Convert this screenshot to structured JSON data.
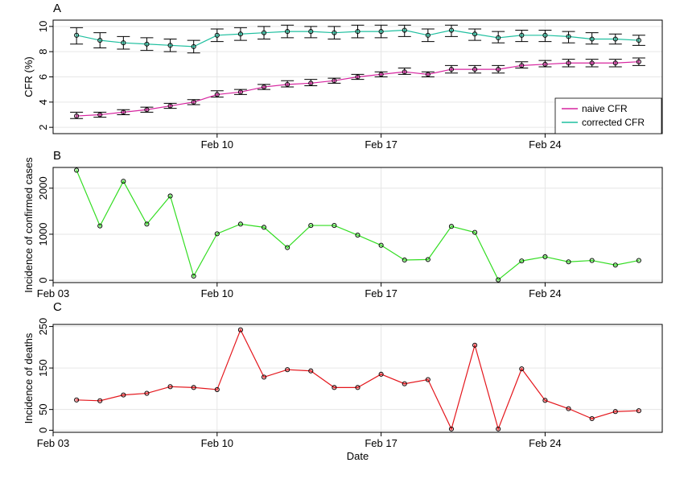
{
  "chart_data": [
    {
      "type": "line",
      "panel_label": "A",
      "ylabel": "CFR (%)",
      "xlabel": "",
      "x_tick_labels": [
        "Feb 10",
        "Feb 17",
        "Feb 24"
      ],
      "x_ticks": [
        10,
        17,
        24
      ],
      "xlim": [
        3,
        29
      ],
      "ylim": [
        1.5,
        10.5
      ],
      "y_ticks": [
        2,
        4,
        6,
        8,
        10
      ],
      "y_tick_labels": [
        "2",
        "4",
        "6",
        "8",
        "10"
      ],
      "grid": true,
      "legend_position": "bottom-right",
      "x": [
        4,
        5,
        6,
        7,
        8,
        9,
        10,
        11,
        12,
        13,
        14,
        15,
        16,
        17,
        18,
        19,
        20,
        21,
        22,
        23,
        24,
        25,
        26,
        27,
        28
      ],
      "series": [
        {
          "name": "naive CFR",
          "color": "#d6249f",
          "values": [
            2.9,
            3.0,
            3.2,
            3.4,
            3.7,
            4.0,
            4.6,
            4.8,
            5.2,
            5.4,
            5.5,
            5.7,
            6.0,
            6.2,
            6.4,
            6.2,
            6.6,
            6.6,
            6.6,
            6.9,
            7.0,
            7.1,
            7.1,
            7.1,
            7.2
          ],
          "error_low": [
            2.7,
            2.8,
            3.0,
            3.2,
            3.5,
            3.8,
            4.4,
            4.6,
            5.0,
            5.2,
            5.3,
            5.5,
            5.8,
            6.0,
            6.2,
            6.0,
            6.3,
            6.3,
            6.3,
            6.7,
            6.8,
            6.8,
            6.8,
            6.8,
            6.9
          ],
          "error_high": [
            3.2,
            3.2,
            3.4,
            3.6,
            3.9,
            4.2,
            4.9,
            5.0,
            5.4,
            5.7,
            5.8,
            5.9,
            6.2,
            6.4,
            6.7,
            6.4,
            6.9,
            6.9,
            6.9,
            7.2,
            7.3,
            7.4,
            7.4,
            7.4,
            7.5
          ]
        },
        {
          "name": "corrected CFR",
          "color": "#1fbf9f",
          "values": [
            9.3,
            8.9,
            8.7,
            8.6,
            8.5,
            8.4,
            9.3,
            9.4,
            9.5,
            9.6,
            9.6,
            9.5,
            9.6,
            9.6,
            9.7,
            9.3,
            9.7,
            9.4,
            9.1,
            9.3,
            9.3,
            9.2,
            9.0,
            9.0,
            8.9
          ],
          "error_low": [
            8.6,
            8.3,
            8.2,
            8.1,
            8.0,
            7.9,
            8.8,
            8.9,
            9.0,
            9.1,
            9.1,
            9.0,
            9.1,
            9.1,
            9.2,
            8.8,
            9.2,
            8.9,
            8.7,
            8.8,
            8.8,
            8.7,
            8.6,
            8.6,
            8.5
          ],
          "error_high": [
            9.9,
            9.5,
            9.2,
            9.1,
            9.0,
            8.9,
            9.8,
            9.9,
            10.0,
            10.1,
            10.0,
            10.0,
            10.1,
            10.1,
            10.1,
            9.8,
            10.1,
            9.8,
            9.6,
            9.7,
            9.7,
            9.6,
            9.5,
            9.4,
            9.3
          ]
        }
      ]
    },
    {
      "type": "line",
      "panel_label": "B",
      "ylabel": "Incidence of confirmed cases",
      "xlabel": "",
      "x_tick_labels": [
        "Feb 03",
        "Feb 10",
        "Feb 17",
        "Feb 24"
      ],
      "x_ticks": [
        3,
        10,
        17,
        24
      ],
      "xlim": [
        3,
        29
      ],
      "ylim": [
        -50,
        2450
      ],
      "y_ticks": [
        0,
        1000,
        2000
      ],
      "y_tick_labels": [
        "0",
        "1000",
        "2000"
      ],
      "grid": true,
      "x": [
        4,
        5,
        6,
        7,
        8,
        9,
        10,
        11,
        12,
        13,
        14,
        15,
        16,
        17,
        18,
        19,
        20,
        21,
        22,
        23,
        24,
        25,
        26,
        27,
        28
      ],
      "series": [
        {
          "name": "",
          "color": "#33dd22",
          "values": [
            2390,
            1180,
            2150,
            1220,
            1830,
            90,
            1010,
            1220,
            1150,
            710,
            1190,
            1190,
            980,
            760,
            440,
            450,
            1170,
            1040,
            10,
            420,
            510,
            400,
            430,
            330,
            430
          ]
        }
      ]
    },
    {
      "type": "line",
      "panel_label": "C",
      "ylabel": "Incidence of deaths",
      "xlabel": "Date",
      "x_tick_labels": [
        "Feb 03",
        "Feb 10",
        "Feb 17",
        "Feb 24"
      ],
      "x_ticks": [
        3,
        10,
        17,
        24
      ],
      "xlim": [
        3,
        29
      ],
      "ylim": [
        -5,
        255
      ],
      "y_ticks": [
        0,
        50,
        150,
        250
      ],
      "y_tick_labels": [
        "0",
        "50",
        "150",
        "250"
      ],
      "grid": true,
      "x": [
        4,
        5,
        6,
        7,
        8,
        9,
        10,
        11,
        12,
        13,
        14,
        15,
        16,
        17,
        18,
        19,
        20,
        21,
        22,
        23,
        24,
        25,
        26,
        27,
        28
      ],
      "series": [
        {
          "name": "",
          "color": "#e4161c",
          "values": [
            73,
            71,
            85,
            89,
            105,
            103,
            98,
            242,
            128,
            146,
            143,
            103,
            103,
            135,
            112,
            122,
            3,
            205,
            3,
            148,
            72,
            52,
            28,
            45,
            47
          ]
        }
      ]
    }
  ]
}
